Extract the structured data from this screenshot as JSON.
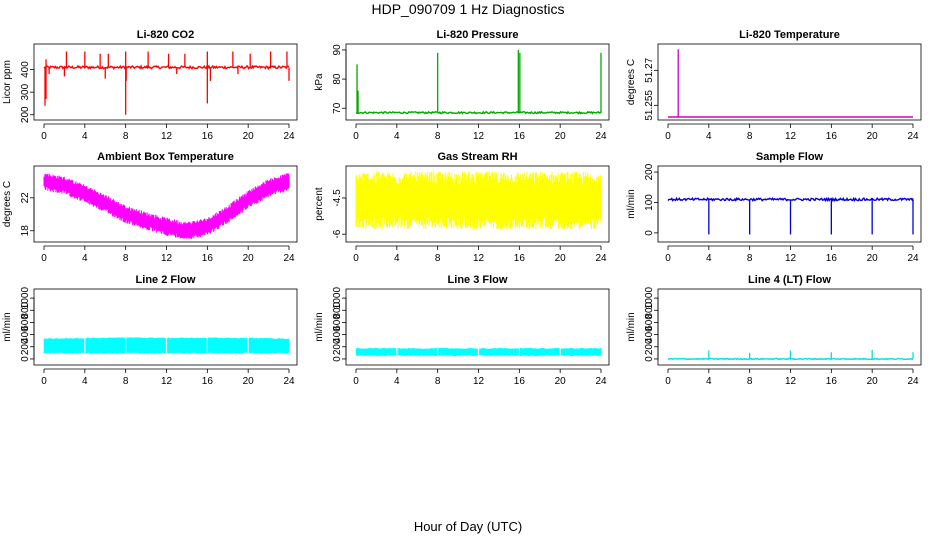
{
  "figure": {
    "title": "HDP_090709  1 Hz Diagnostics",
    "xlabel": "Hour of Day (UTC)"
  },
  "chart_data": [
    {
      "type": "line",
      "title": "Li-820 CO2",
      "ylabel": "Licor ppm",
      "color": "#ff0000",
      "xlim": [
        0,
        24
      ],
      "ylim": [
        190,
        500
      ],
      "xticks": [
        0,
        4,
        8,
        12,
        16,
        20,
        24
      ],
      "yticks": [
        200,
        300,
        400
      ],
      "series": [
        {
          "baseline": 410,
          "noise": 6,
          "x": [
            0,
            24
          ],
          "spikes_up": [
            [
              0.2,
              445
            ],
            [
              2.2,
              480
            ],
            [
              4,
              480
            ],
            [
              5.5,
              470
            ],
            [
              6.3,
              470
            ],
            [
              8,
              480
            ],
            [
              10.2,
              480
            ],
            [
              12.2,
              470
            ],
            [
              13.8,
              470
            ],
            [
              16,
              480
            ],
            [
              18.5,
              480
            ],
            [
              20.2,
              470
            ],
            [
              22.2,
              480
            ],
            [
              23.8,
              480
            ]
          ],
          "spikes_down": [
            [
              0.1,
              240
            ],
            [
              0.2,
              270
            ],
            [
              0.5,
              380
            ],
            [
              8,
              200
            ],
            [
              8.05,
              350
            ],
            [
              16,
              250
            ],
            [
              16.3,
              350
            ],
            [
              24,
              350
            ],
            [
              2,
              370
            ],
            [
              6,
              360
            ],
            [
              13,
              380
            ],
            [
              19,
              380
            ]
          ]
        }
      ]
    },
    {
      "type": "line",
      "title": "Li-820 Pressure",
      "ylabel": "kPa",
      "color": "#00aa00",
      "xlim": [
        0,
        24
      ],
      "ylim": [
        67,
        91
      ],
      "xticks": [
        0,
        4,
        8,
        12,
        16,
        20,
        24
      ],
      "yticks": [
        70,
        80,
        90
      ],
      "series": [
        {
          "baseline": 68.5,
          "noise": 0.3,
          "x": [
            0,
            24
          ],
          "spikes_up": [
            [
              0.1,
              85
            ],
            [
              0.2,
              76
            ],
            [
              8,
              89
            ],
            [
              15.9,
              90
            ],
            [
              16.05,
              89
            ],
            [
              24,
              89
            ]
          ],
          "spikes_down": []
        }
      ]
    },
    {
      "type": "line",
      "title": "Li-820 Temperature",
      "ylabel": "degrees C",
      "color": "#cc00cc",
      "xlim": [
        0,
        24
      ],
      "ylim": [
        51.25,
        51.28
      ],
      "xticks": [
        0,
        4,
        8,
        12,
        16,
        20,
        24
      ],
      "yticks": [
        51.255,
        51.27
      ],
      "series": [
        {
          "baseline": 51.25,
          "noise": 0,
          "x": [
            0,
            24
          ],
          "spikes_up": [
            [
              1,
              51.279
            ]
          ],
          "spikes_down": []
        }
      ]
    },
    {
      "type": "line",
      "title": "Ambient Box Temperature",
      "ylabel": "degrees C",
      "color": "#ff00ff",
      "xlim": [
        0,
        24
      ],
      "ylim": [
        17,
        25.5
      ],
      "xticks": [
        0,
        4,
        8,
        12,
        16,
        20,
        24
      ],
      "yticks": [
        18,
        22
      ],
      "series": [
        {
          "x": [
            0,
            2,
            4,
            6,
            8,
            10,
            12,
            14,
            16,
            18,
            20,
            22,
            24
          ],
          "values": [
            24.0,
            23.5,
            22.5,
            21.3,
            20.0,
            19.2,
            18.5,
            18.0,
            18.5,
            20.0,
            21.8,
            23.2,
            24.0
          ],
          "band": 1.1
        }
      ]
    },
    {
      "type": "line",
      "title": "Gas Stream RH",
      "ylabel": "percent",
      "color": "#ffff00",
      "xlim": [
        0,
        24
      ],
      "ylim": [
        -6.2,
        -3.3
      ],
      "xticks": [
        0,
        4,
        8,
        12,
        16,
        20,
        24
      ],
      "yticks": [
        -6.0,
        -4.5
      ],
      "series": [
        {
          "x": [
            0,
            24
          ],
          "values": [
            -4.6,
            -4.6
          ],
          "band": 1.2
        }
      ]
    },
    {
      "type": "line",
      "title": "Sample Flow",
      "ylabel": "ml/min",
      "color": "#0000dd",
      "xlim": [
        0,
        24
      ],
      "ylim": [
        -20,
        210
      ],
      "xticks": [
        0,
        4,
        8,
        12,
        16,
        20,
        24
      ],
      "yticks": [
        0,
        100,
        200
      ],
      "series": [
        {
          "baseline": 110,
          "noise": 4,
          "x": [
            0,
            24
          ],
          "spikes_up": [],
          "spikes_down": [
            [
              4,
              -5
            ],
            [
              8,
              -5
            ],
            [
              12,
              -5
            ],
            [
              16,
              -5
            ],
            [
              20,
              -5
            ],
            [
              24,
              -5
            ]
          ]
        }
      ]
    },
    {
      "type": "area",
      "title": "Line 2 Flow",
      "ylabel": "ml/min",
      "color": "#00ffff",
      "xlim": [
        0,
        24
      ],
      "ylim": [
        -50,
        1100
      ],
      "xticks": [
        0,
        4,
        8,
        12,
        16,
        20,
        24
      ],
      "yticks": [
        0,
        200,
        400,
        600,
        800,
        1000
      ],
      "series": [
        {
          "x": [
            0,
            4,
            8,
            12,
            16,
            20,
            24
          ],
          "upper": [
            330,
            340,
            350,
            340,
            345,
            340,
            330
          ],
          "lower": [
            100,
            100,
            100,
            100,
            100,
            100,
            100
          ],
          "gaps": [
            4,
            8,
            12,
            16,
            20
          ]
        }
      ]
    },
    {
      "type": "area",
      "title": "Line 3 Flow",
      "ylabel": "ml/min",
      "color": "#00ffff",
      "xlim": [
        0,
        24
      ],
      "ylim": [
        -50,
        1100
      ],
      "xticks": [
        0,
        4,
        8,
        12,
        16,
        20,
        24
      ],
      "yticks": [
        0,
        200,
        400,
        600,
        800,
        1000
      ],
      "series": [
        {
          "x": [
            0,
            4,
            8,
            12,
            16,
            20,
            24
          ],
          "upper": [
            170,
            170,
            170,
            170,
            170,
            170,
            170
          ],
          "lower": [
            60,
            60,
            60,
            60,
            60,
            60,
            60
          ],
          "gaps": [
            4,
            8,
            12,
            16,
            20
          ]
        }
      ]
    },
    {
      "type": "line",
      "title": "Line 4 (LT) Flow",
      "ylabel": "ml/min",
      "color": "#00e0e0",
      "xlim": [
        0,
        24
      ],
      "ylim": [
        -50,
        1100
      ],
      "xticks": [
        0,
        4,
        8,
        12,
        16,
        20,
        24
      ],
      "yticks": [
        0,
        200,
        400,
        600,
        800,
        1000
      ],
      "series": [
        {
          "baseline": 0,
          "noise": 8,
          "x": [
            0,
            24
          ],
          "spikes_up": [
            [
              4,
              140
            ],
            [
              8,
              100
            ],
            [
              12,
              140
            ],
            [
              16,
              110
            ],
            [
              20,
              150
            ],
            [
              24,
              110
            ]
          ],
          "spikes_down": []
        }
      ]
    }
  ]
}
